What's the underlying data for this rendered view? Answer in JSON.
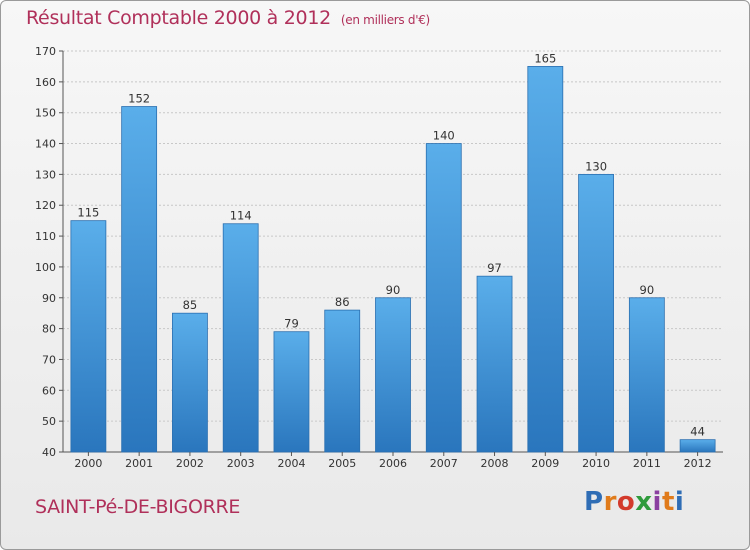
{
  "header": {
    "title": "Résultat Comptable 2000 à 2012",
    "subtitle": "(en milliers d'€)"
  },
  "footer": {
    "commune": "SAINT-Pé-DE-BIGORRE",
    "logo_text": "Proxiti",
    "logo_letters": [
      "P",
      "r",
      "o",
      "x",
      "i",
      "t",
      "i"
    ],
    "logo_colors": [
      "#2f6db5",
      "#e07b1b",
      "#d33a2c",
      "#2f9b3c",
      "#8a3fa0",
      "#e07b1b",
      "#2f6db5"
    ]
  },
  "chart_data": {
    "type": "bar",
    "title": "Résultat Comptable 2000 à 2012",
    "subtitle": "(en milliers d'€)",
    "categories": [
      "2000",
      "2001",
      "2002",
      "2003",
      "2004",
      "2005",
      "2006",
      "2007",
      "2008",
      "2009",
      "2010",
      "2011",
      "2012"
    ],
    "values": [
      115,
      152,
      85,
      114,
      79,
      86,
      90,
      140,
      97,
      165,
      130,
      90,
      44
    ],
    "xlabel": "",
    "ylabel": "",
    "ylim": [
      40,
      170
    ],
    "yticks": [
      40,
      50,
      60,
      70,
      80,
      90,
      100,
      110,
      120,
      130,
      140,
      150,
      160,
      170
    ],
    "grid": true,
    "bar_color": "#3d91d8",
    "bar_color_light": "#5aaeea",
    "bar_color_dark": "#2a76bd"
  }
}
